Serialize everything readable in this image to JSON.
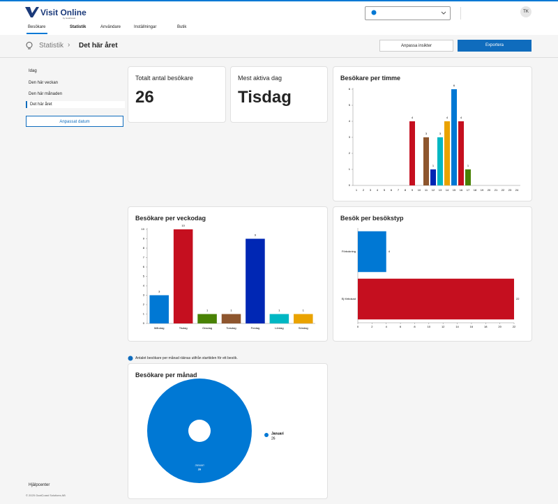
{
  "header": {
    "logo": "Visit Online",
    "logo_sub": "by GoalCoast",
    "avatar": "TK"
  },
  "nav": [
    "Besökare",
    "Statistik",
    "Användare",
    "Inställningar",
    "Butik"
  ],
  "breadcrumb": [
    "Statistik",
    "Det här året"
  ],
  "actions": [
    "Anpassa insikter",
    "Exportera"
  ],
  "sidebar": {
    "periods": [
      "Idag",
      "Den här veckan",
      "Den här månaden",
      "Det här året"
    ],
    "custom": "Anpassat datum",
    "help": "Hjälpcenter",
    "copyright": "© 2025 GoalCoast Solutions AB"
  },
  "kpis": [
    {
      "label": "Totalt antal besökare",
      "value": "26"
    },
    {
      "label": "Mest aktiva dag",
      "value": "Tisdag"
    }
  ],
  "note": "Antalet besökare per månad räknas utifrån starttiden för ett besök.",
  "chart_data": [
    {
      "type": "bar",
      "title": "Besökare per timme",
      "categories": [
        "1",
        "2",
        "3",
        "4",
        "5",
        "6",
        "7",
        "8",
        "9",
        "10",
        "11",
        "12",
        "13",
        "14",
        "15",
        "16",
        "17",
        "18",
        "19",
        "20",
        "21",
        "22",
        "23",
        "24"
      ],
      "values": [
        0,
        0,
        0,
        0,
        0,
        0,
        0,
        0,
        4,
        0,
        3,
        1,
        3,
        4,
        6,
        4,
        1,
        0,
        0,
        0,
        0,
        0,
        0,
        0
      ],
      "colors": [
        null,
        null,
        null,
        null,
        null,
        null,
        null,
        null,
        "#c50f1f",
        null,
        "#8e562e",
        "#0027b4",
        "#00b7c3",
        "#eaa300",
        "#0078d4",
        "#c50f1f",
        "#498205",
        null,
        null,
        null,
        null,
        null,
        null,
        null
      ],
      "ylim": [
        0,
        6
      ],
      "yticks": [
        0,
        1,
        2,
        3,
        4,
        5,
        6
      ],
      "data_labels": true
    },
    {
      "type": "bar",
      "title": "Besökare per veckodag",
      "categories": [
        "Måndag",
        "Tisdag",
        "Onsdag",
        "Torsdag",
        "Fredag",
        "Lördag",
        "Söndag"
      ],
      "values": [
        3,
        10,
        1,
        1,
        9,
        1,
        1
      ],
      "colors": [
        "#0078d4",
        "#c50f1f",
        "#498205",
        "#8e562e",
        "#0027b4",
        "#00b7c3",
        "#eaa300"
      ],
      "ylim": [
        0,
        10
      ],
      "yticks": [
        0,
        1,
        2,
        3,
        4,
        5,
        6,
        7,
        8,
        9,
        10
      ],
      "data_labels": true
    },
    {
      "type": "hbar",
      "title": "Besök per besökstyp",
      "categories": [
        "Förbokning",
        "Ej förbokad"
      ],
      "values": [
        4,
        22
      ],
      "colors": [
        "#0078d4",
        "#c50f1f"
      ],
      "xlim": [
        0,
        22
      ],
      "xticks": [
        0,
        2,
        4,
        6,
        8,
        10,
        12,
        14,
        16,
        18,
        20,
        22
      ],
      "data_labels": true
    },
    {
      "type": "pie",
      "title": "Besökare per månad",
      "categories": [
        "Januari"
      ],
      "values": [
        26
      ],
      "colors": [
        "#0078d4"
      ],
      "donut": true,
      "legend": "right"
    }
  ]
}
